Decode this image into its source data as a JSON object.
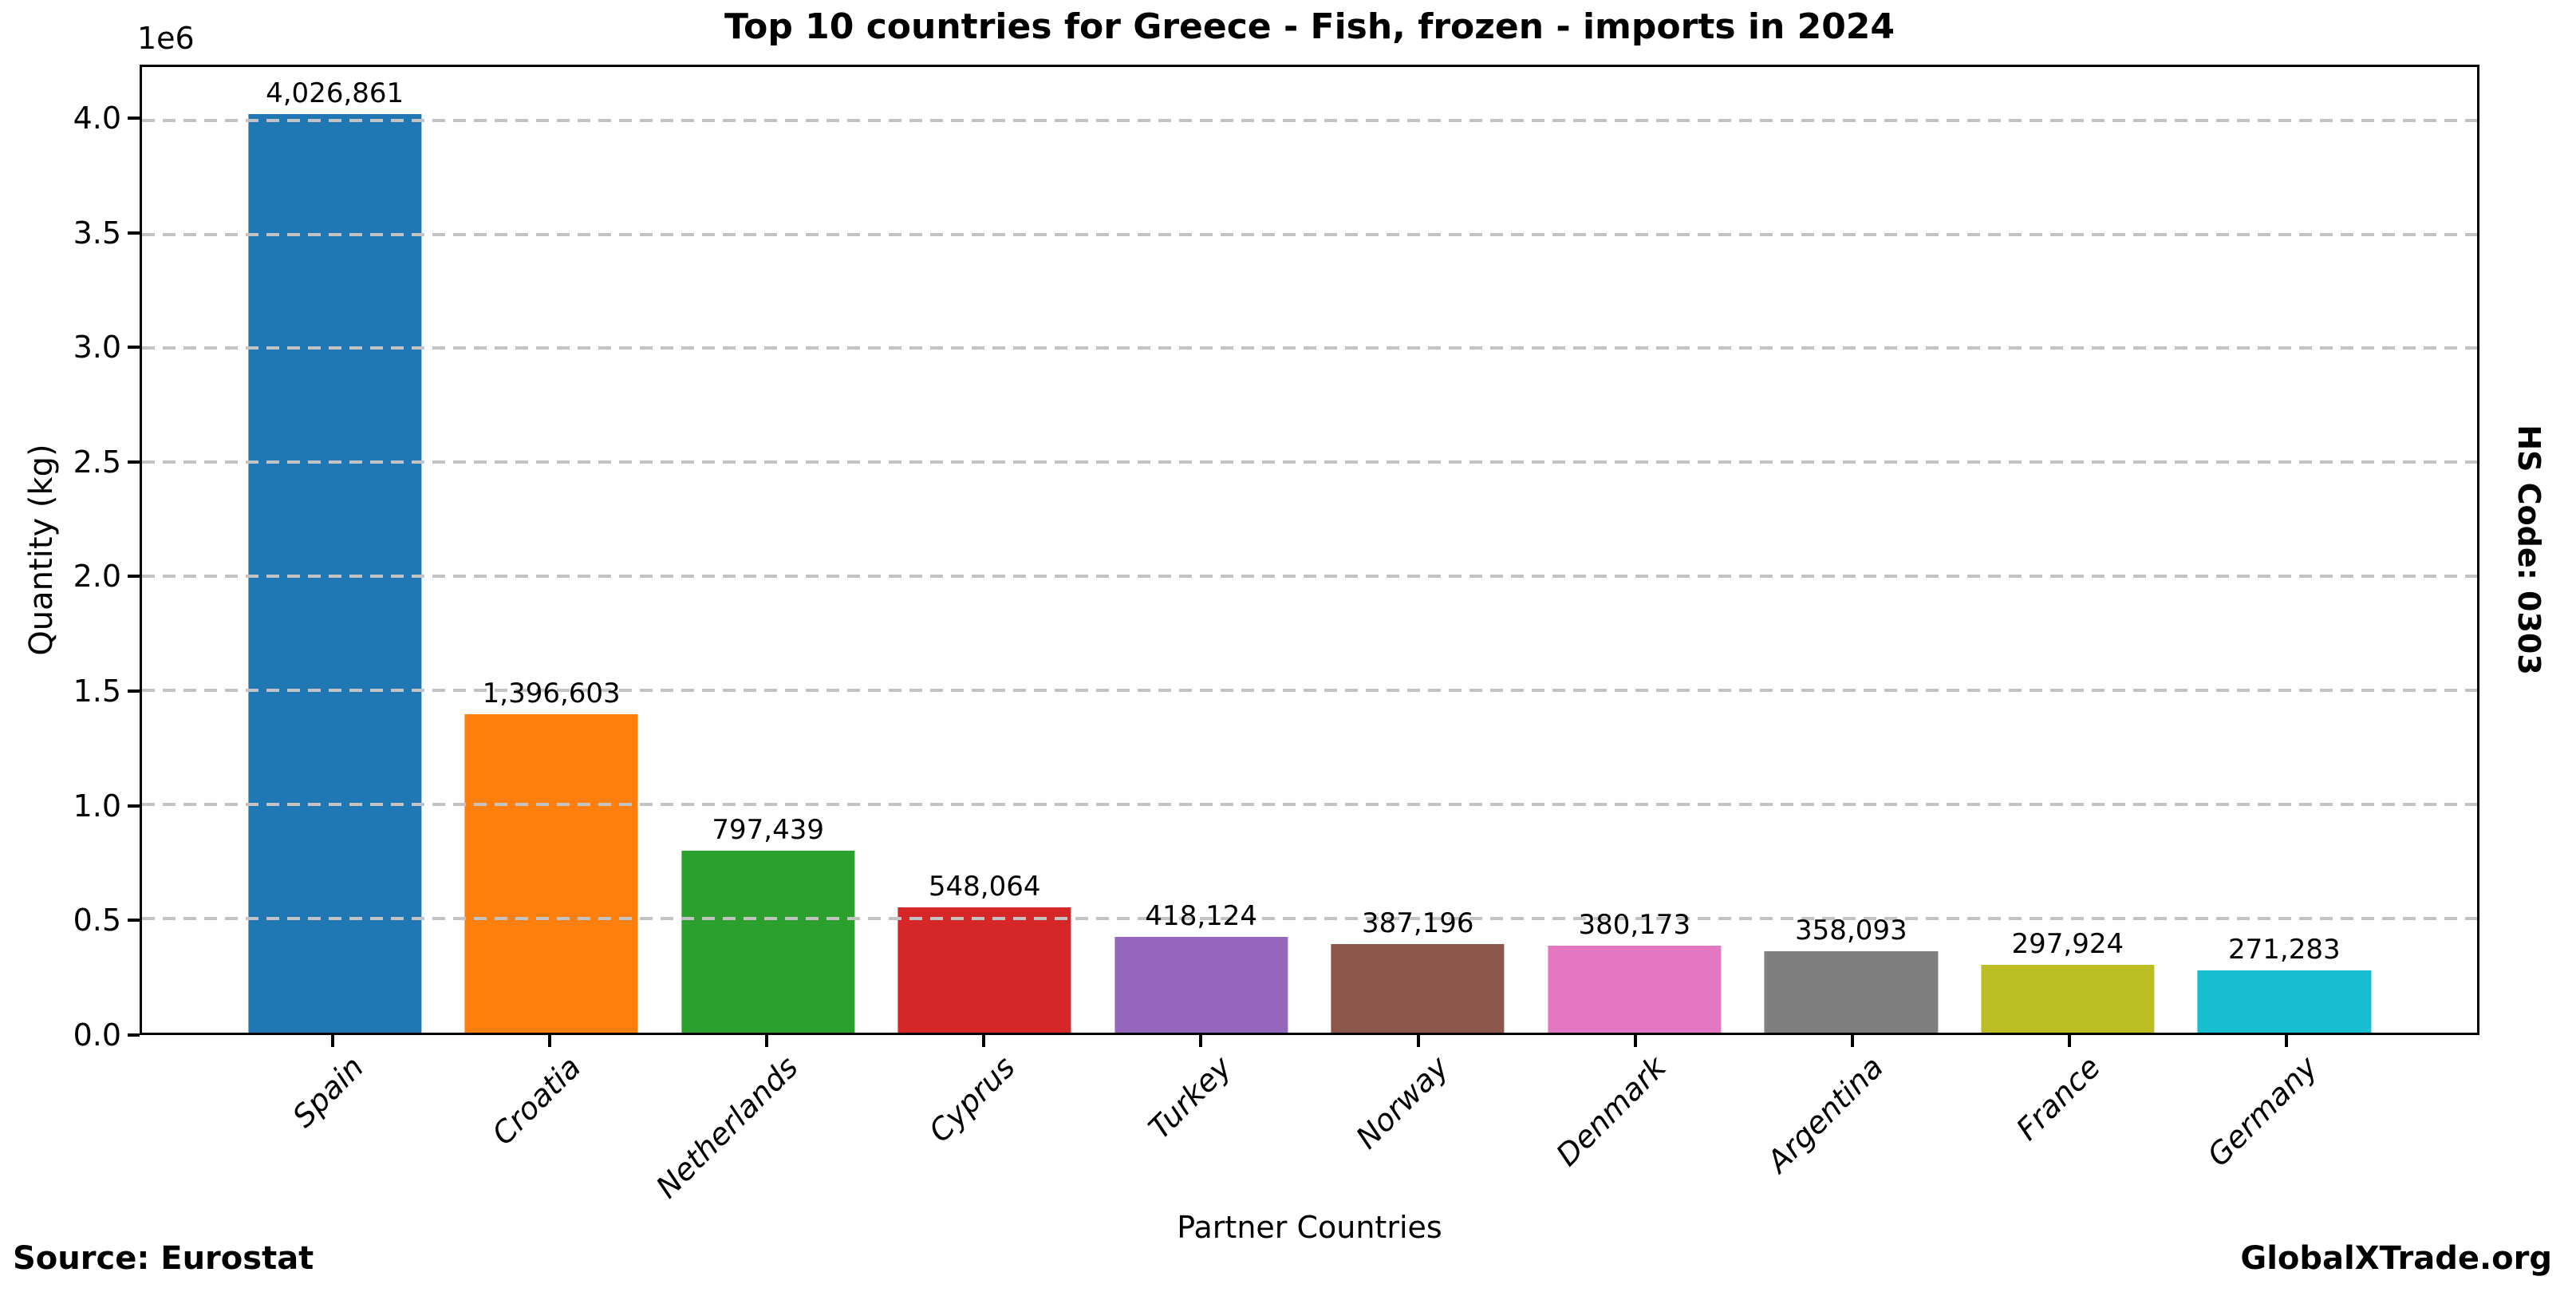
{
  "chart_data": {
    "type": "bar",
    "title": "Top 10 countries for Greece - Fish, frozen - imports in 2024",
    "xlabel": "Partner Countries",
    "ylabel": "Quantity (kg)",
    "y_offset_label": "1e6",
    "categories": [
      "Spain",
      "Croatia",
      "Netherlands",
      "Cyprus",
      "Turkey",
      "Norway",
      "Denmark",
      "Argentina",
      "France",
      "Germany"
    ],
    "values": [
      4026861,
      1396603,
      797439,
      548064,
      418124,
      387196,
      380173,
      358093,
      297924,
      271283
    ],
    "value_labels": [
      "4,026,861",
      "1,396,603",
      "797,439",
      "548,064",
      "418,124",
      "387,196",
      "380,173",
      "358,093",
      "297,924",
      "271,283"
    ],
    "bar_colors": [
      "#1f77b4",
      "#ff7f0e",
      "#2ca02c",
      "#d62728",
      "#9467bd",
      "#8c564b",
      "#e377c2",
      "#7f7f7f",
      "#bcbd22",
      "#17becf"
    ],
    "y_ticks": [
      0.0,
      0.5,
      1.0,
      1.5,
      2.0,
      2.5,
      3.0,
      3.5,
      4.0
    ],
    "y_tick_labels": [
      "0.0",
      "0.5",
      "1.0",
      "1.5",
      "2.0",
      "2.5",
      "3.0",
      "3.5",
      "4.0"
    ],
    "ylim": [
      0,
      4233000
    ],
    "unit_scale": 1000000,
    "x_tick_label_rotation": 45,
    "grid": "horizontal-dashed",
    "grid_color": "#c3c3c3",
    "spine_color": "#000000",
    "legend": "none"
  },
  "footer": {
    "source": "Source: Eurostat",
    "brand": "GlobalXTrade.org"
  },
  "side_label": "HS Code: 0303"
}
